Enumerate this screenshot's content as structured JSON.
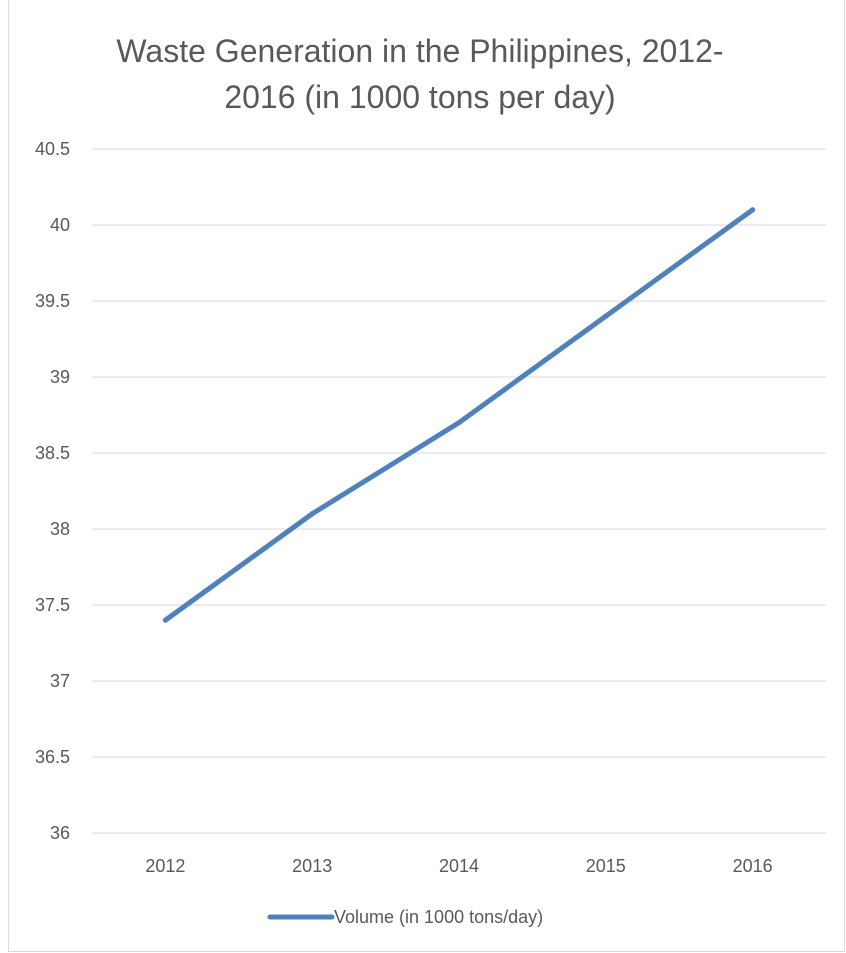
{
  "chart_data": {
    "type": "line",
    "title": "Waste Generation in the Philippines, 2012-2016 (in 1000 tons per day)",
    "title_lines": [
      "Waste Generation in the Philippines, 2012-",
      "2016 (in 1000 tons per day)"
    ],
    "categories": [
      "2012",
      "2013",
      "2014",
      "2015",
      "2016"
    ],
    "series": [
      {
        "name": "Volume (in 1000 tons/day)",
        "values": [
          37.4,
          38.1,
          38.7,
          39.4,
          40.1
        ],
        "color": "#4f81bd"
      }
    ],
    "ylim": [
      36,
      40.5
    ],
    "yticks": [
      "36",
      "36.5",
      "37",
      "37.5",
      "38",
      "38.5",
      "39",
      "39.5",
      "40",
      "40.5"
    ],
    "grid": true,
    "legend_position": "bottom",
    "xlabel": "",
    "ylabel": ""
  }
}
